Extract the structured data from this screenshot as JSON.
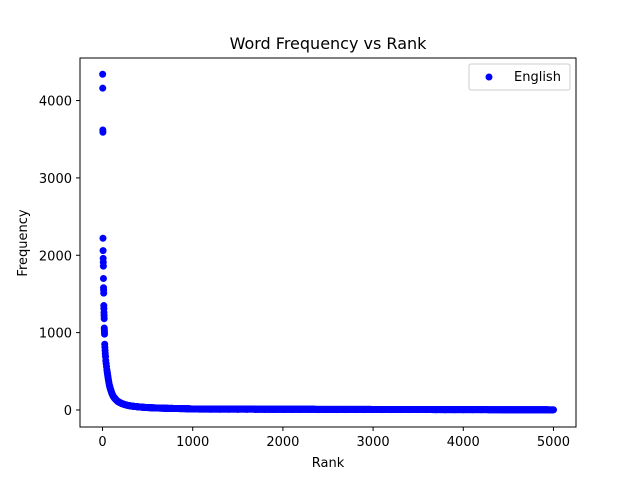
{
  "chart_data": {
    "type": "scatter",
    "title": "Word Frequency vs Rank",
    "xlabel": "Rank",
    "ylabel": "Frequency",
    "xlim": [
      -250,
      5250
    ],
    "ylim": [
      -220,
      4550
    ],
    "xticks": [
      0,
      1000,
      2000,
      3000,
      4000,
      5000
    ],
    "yticks": [
      0,
      1000,
      2000,
      3000,
      4000
    ],
    "grid": false,
    "legend_position": "top-right",
    "series": [
      {
        "name": "English",
        "color": "#0000ff",
        "points": [
          [
            1,
            4340
          ],
          [
            2,
            4160
          ],
          [
            3,
            3620
          ],
          [
            4,
            3590
          ],
          [
            5,
            2220
          ],
          [
            6,
            2060
          ],
          [
            7,
            1960
          ],
          [
            8,
            1910
          ],
          [
            9,
            1860
          ],
          [
            10,
            1700
          ],
          [
            11,
            1580
          ],
          [
            12,
            1550
          ],
          [
            13,
            1510
          ],
          [
            14,
            1350
          ],
          [
            15,
            1310
          ],
          [
            16,
            1260
          ],
          [
            17,
            1220
          ],
          [
            18,
            1180
          ],
          [
            19,
            1060
          ],
          [
            20,
            1040
          ],
          [
            21,
            1010
          ],
          [
            22,
            980
          ],
          [
            24,
            850
          ],
          [
            26,
            810
          ],
          [
            28,
            770
          ],
          [
            30,
            730
          ],
          [
            33,
            690
          ],
          [
            36,
            640
          ],
          [
            40,
            600
          ],
          [
            44,
            560
          ],
          [
            48,
            520
          ],
          [
            52,
            490
          ],
          [
            57,
            450
          ],
          [
            62,
            410
          ],
          [
            68,
            370
          ],
          [
            74,
            330
          ],
          [
            80,
            300
          ],
          [
            88,
            270
          ],
          [
            96,
            240
          ],
          [
            105,
            210
          ],
          [
            115,
            185
          ],
          [
            125,
            165
          ],
          [
            140,
            145
          ],
          [
            155,
            125
          ],
          [
            170,
            110
          ],
          [
            190,
            96
          ],
          [
            210,
            85
          ],
          [
            235,
            74
          ],
          [
            260,
            65
          ],
          [
            290,
            57
          ],
          [
            320,
            51
          ],
          [
            360,
            45
          ],
          [
            400,
            40
          ],
          [
            450,
            35
          ],
          [
            500,
            31
          ],
          [
            560,
            28
          ],
          [
            620,
            25
          ],
          [
            700,
            22
          ],
          [
            780,
            20
          ],
          [
            860,
            18
          ],
          [
            950,
            16
          ],
          [
            1000,
            12
          ],
          [
            1100,
            11
          ],
          [
            1200,
            10
          ],
          [
            1300,
            9
          ],
          [
            1400,
            9
          ],
          [
            1500,
            8
          ],
          [
            1600,
            8
          ],
          [
            1700,
            7
          ],
          [
            1800,
            7
          ],
          [
            1900,
            7
          ],
          [
            2000,
            6
          ],
          [
            2100,
            6
          ],
          [
            2200,
            6
          ],
          [
            2300,
            6
          ],
          [
            2400,
            5
          ],
          [
            2500,
            5
          ],
          [
            2600,
            5
          ],
          [
            2700,
            5
          ],
          [
            2800,
            5
          ],
          [
            2900,
            5
          ],
          [
            3000,
            4
          ],
          [
            3100,
            4
          ],
          [
            3200,
            4
          ],
          [
            3300,
            4
          ],
          [
            3400,
            4
          ],
          [
            3500,
            4
          ],
          [
            3600,
            4
          ],
          [
            3700,
            3
          ],
          [
            3800,
            3
          ],
          [
            3900,
            3
          ],
          [
            4000,
            3
          ],
          [
            4100,
            3
          ],
          [
            4200,
            3
          ],
          [
            4300,
            3
          ],
          [
            4400,
            3
          ],
          [
            4500,
            3
          ],
          [
            4600,
            3
          ],
          [
            4700,
            2
          ],
          [
            4800,
            2
          ],
          [
            4900,
            2
          ],
          [
            5000,
            2
          ]
        ],
        "tail": {
          "x_start": 1000,
          "x_end": 5000,
          "y_start": 12,
          "y_end": 2,
          "note": "dense continuous run of points, one per rank"
        }
      }
    ]
  }
}
